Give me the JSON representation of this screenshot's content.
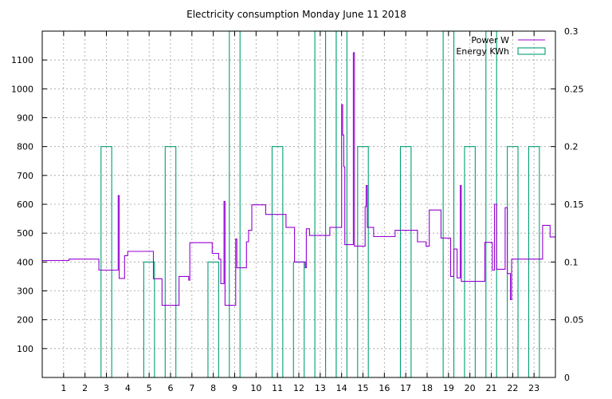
{
  "chart_data": {
    "type": "line",
    "title": "Electricity consumption Monday June 11 2018",
    "xlim": [
      0,
      24
    ],
    "x_ticks": [
      1,
      2,
      3,
      4,
      5,
      6,
      7,
      8,
      9,
      10,
      11,
      12,
      13,
      14,
      15,
      16,
      17,
      18,
      19,
      20,
      21,
      22,
      23
    ],
    "y_left": {
      "lim": [
        0,
        1200
      ],
      "ticks": [
        100,
        200,
        300,
        400,
        500,
        600,
        700,
        800,
        900,
        1000,
        1100
      ]
    },
    "y_right": {
      "lim": [
        0,
        0.3
      ],
      "ticks": [
        0,
        0.05,
        0.1,
        0.15,
        0.2,
        0.25,
        0.3
      ]
    },
    "grid": true,
    "legend_position": "top-right",
    "series": [
      {
        "name": "Power W",
        "axis": "left",
        "style": "step-line",
        "color": "#9400d3",
        "points": [
          [
            0,
            405
          ],
          [
            1.25,
            410
          ],
          [
            2.65,
            372
          ],
          [
            3.5,
            372
          ],
          [
            3.55,
            630
          ],
          [
            3.6,
            343
          ],
          [
            3.85,
            422
          ],
          [
            4,
            437
          ],
          [
            5.2,
            437
          ],
          [
            5.2,
            342
          ],
          [
            5.6,
            250
          ],
          [
            6.4,
            350
          ],
          [
            6.85,
            337
          ],
          [
            6.9,
            467
          ],
          [
            7.95,
            467
          ],
          [
            7.95,
            430
          ],
          [
            8.25,
            410
          ],
          [
            8.35,
            325
          ],
          [
            8.5,
            610
          ],
          [
            8.55,
            250
          ],
          [
            9.05,
            480
          ],
          [
            9.1,
            380
          ],
          [
            9.55,
            470
          ],
          [
            9.65,
            510
          ],
          [
            9.8,
            598
          ],
          [
            10.45,
            565
          ],
          [
            11.4,
            520
          ],
          [
            11.8,
            400
          ],
          [
            12.3,
            380
          ],
          [
            12.35,
            515
          ],
          [
            12.5,
            492
          ],
          [
            13.45,
            520
          ],
          [
            14,
            945
          ],
          [
            14.05,
            840
          ],
          [
            14.1,
            730
          ],
          [
            14.15,
            460
          ],
          [
            14.55,
            1125
          ],
          [
            14.6,
            455
          ],
          [
            15.1,
            592
          ],
          [
            15.15,
            665
          ],
          [
            15.2,
            520
          ],
          [
            15.5,
            488
          ],
          [
            16.5,
            510
          ],
          [
            17.55,
            470
          ],
          [
            17.95,
            455
          ],
          [
            18.1,
            580
          ],
          [
            18.65,
            483
          ],
          [
            19.1,
            350
          ],
          [
            19.25,
            445
          ],
          [
            19.4,
            345
          ],
          [
            19.55,
            665
          ],
          [
            19.6,
            333
          ],
          [
            20.7,
            468
          ],
          [
            21.05,
            372
          ],
          [
            21.15,
            600
          ],
          [
            21.25,
            375
          ],
          [
            21.65,
            588
          ],
          [
            21.75,
            360
          ],
          [
            21.9,
            270
          ],
          [
            21.95,
            410
          ],
          [
            23.35,
            410
          ],
          [
            23.4,
            527
          ],
          [
            23.75,
            487
          ],
          [
            24,
            487
          ]
        ]
      },
      {
        "name": "Energy KWh",
        "axis": "right",
        "style": "box",
        "color": "#009e73",
        "boxes": [
          [
            2.75,
            3.25,
            0.2
          ],
          [
            4.75,
            5.25,
            0.1
          ],
          [
            5.75,
            6.25,
            0.2
          ],
          [
            7.75,
            8.25,
            0.1
          ],
          [
            8.75,
            9.25,
            0.3
          ],
          [
            10.75,
            11.25,
            0.2
          ],
          [
            11.75,
            12.25,
            0.1
          ],
          [
            12.75,
            13.25,
            0.3
          ],
          [
            13.25,
            13.75,
            0.3
          ],
          [
            13.75,
            14.25,
            0.3
          ],
          [
            14.75,
            15.25,
            0.2
          ],
          [
            16.75,
            17.25,
            0.2
          ],
          [
            18.75,
            19.25,
            0.3
          ],
          [
            19.75,
            20.25,
            0.2
          ],
          [
            20.75,
            21.25,
            0.3
          ],
          [
            21.75,
            22.25,
            0.2
          ],
          [
            22.75,
            23.25,
            0.2
          ]
        ]
      }
    ]
  }
}
